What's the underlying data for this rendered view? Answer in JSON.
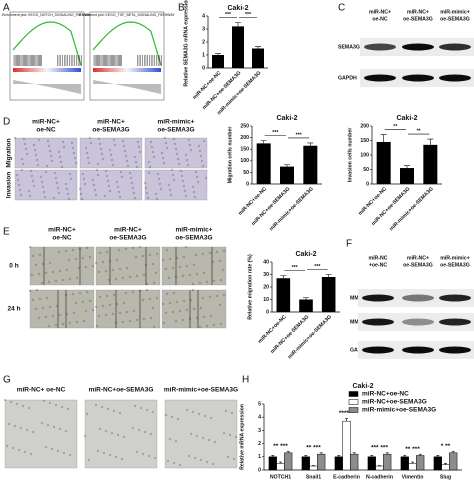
{
  "panel_letters": [
    "A",
    "B",
    "C",
    "D",
    "E",
    "F",
    "G",
    "H"
  ],
  "gsea_titles": [
    "Enrichment plot: KEGG_NOTCH_SIGNALING_PATHWAY",
    "Enrichment plot: KEGG_TGF_BETA_SIGNALING_PATHWAY"
  ],
  "blot_c": {
    "columns": [
      [
        "miR-NC+",
        "oe-NC"
      ],
      [
        "miR-NC+",
        "oe-SEMA3G"
      ],
      [
        "miR-mimic+",
        "oe-SEMA3G"
      ]
    ],
    "rows": [
      "SEMA3G",
      "GAPDH"
    ]
  },
  "panel_d": {
    "columns": [
      [
        "miR-NC+",
        "oe-NC"
      ],
      [
        "miR-NC+",
        "oe-SEMA3G"
      ],
      [
        "miR-mimic+",
        "oe-SEMA3G"
      ]
    ],
    "rows": [
      "Migration",
      "Invasion"
    ]
  },
  "panel_e": {
    "columns": [
      [
        "miR-NC+",
        "oe-NC"
      ],
      [
        "miR-NC+",
        "oe-SEMA3G"
      ],
      [
        "miR-mimic+",
        "oe-SEMA3G"
      ]
    ],
    "rows": [
      "0 h",
      "24 h"
    ]
  },
  "blot_f": {
    "columns": [
      [
        "miR-NC",
        "+oe-NC"
      ],
      [
        "miR-NC+",
        "oe-SEMA3G"
      ],
      [
        "miR-mimic+",
        "oe-SEMA3G"
      ]
    ],
    "rows": [
      "MMP2",
      "MMP9",
      "GAPDH"
    ]
  },
  "panel_g": {
    "columns": [
      "miR-NC+ oe-NC",
      "miR-NC+oe-SEMA3G",
      "miR-mimic+oe-SEMA3G"
    ]
  },
  "chart_data": [
    {
      "type": "bar",
      "title": "Caki-2",
      "ylabel": "Relative SEMA3G mRNA expression",
      "categories": [
        "miR-NC+oe-NC",
        "miR-NC+oe-SEMA3G",
        "miR-mimic+oe-SEMA3G"
      ],
      "values": [
        1.0,
        3.2,
        1.5
      ],
      "errors": [
        0.1,
        0.3,
        0.15
      ],
      "color": "#000000",
      "ylim": [
        0,
        4
      ],
      "yticks": [
        0,
        1,
        2,
        3,
        4
      ],
      "annotations": [
        "***",
        "***"
      ]
    },
    {
      "type": "bar",
      "title": "Caki-2",
      "ylabel": "Migration cells number",
      "categories": [
        "miR-NC+oe-NC",
        "miR-NC+oe-SEMA3G",
        "miR-mimic+oe-SEMA3G"
      ],
      "values": [
        175,
        75,
        165
      ],
      "errors": [
        12,
        8,
        12
      ],
      "color": "#000000",
      "ylim": [
        0,
        250
      ],
      "yticks": [
        0,
        50,
        100,
        150,
        200,
        250
      ],
      "annotations": [
        "***",
        "***"
      ]
    },
    {
      "type": "bar",
      "title": "Caki-2",
      "ylabel": "Invasion cells number",
      "categories": [
        "miR-NC+oe-NC",
        "miR-NC+oe-SEMA3G",
        "miR-mimic+oe-SEMA3G"
      ],
      "values": [
        145,
        55,
        135
      ],
      "errors": [
        25,
        8,
        20
      ],
      "color": "#000000",
      "ylim": [
        0,
        200
      ],
      "yticks": [
        0,
        50,
        100,
        150,
        200
      ],
      "annotations": [
        "**",
        "**"
      ]
    },
    {
      "type": "bar",
      "title": "Caki-2",
      "ylabel": "Relative migration rate (%)",
      "categories": [
        "miR-NC+oe-NC",
        "miR-NC+oe-SEMA3G",
        "miR-mimic+oe-SEMA3G"
      ],
      "values": [
        27,
        10,
        28
      ],
      "errors": [
        2,
        1.5,
        2
      ],
      "color": "#000000",
      "ylim": [
        0,
        40
      ],
      "yticks": [
        0,
        10,
        20,
        30,
        40
      ],
      "annotations": [
        "***",
        "***"
      ]
    },
    {
      "type": "grouped_bar",
      "title": "Caki-2",
      "ylabel": "Relative mRNA expression",
      "categories": [
        "NOTCH1",
        "Snail1",
        "E-cadherin",
        "N-cadherin",
        "Vimentin",
        "Slug"
      ],
      "series": [
        {
          "name": "miR-NC+oe-NC",
          "color": "#000000",
          "values": [
            1.0,
            1.0,
            1.0,
            1.0,
            1.0,
            1.0
          ],
          "errors": [
            0.1,
            0.1,
            0.1,
            0.1,
            0.1,
            0.1
          ]
        },
        {
          "name": "miR-NC+oe-SEMA3G",
          "color": "#ffffff",
          "values": [
            0.5,
            0.3,
            3.7,
            0.3,
            0.5,
            0.4
          ],
          "errors": [
            0.1,
            0.05,
            0.2,
            0.05,
            0.1,
            0.1
          ]
        },
        {
          "name": "miR-mimic+oe-SEMA3G",
          "color": "#8c8c8c",
          "values": [
            1.3,
            1.2,
            1.2,
            1.2,
            1.1,
            1.3
          ],
          "errors": [
            0.1,
            0.1,
            0.1,
            0.1,
            0.1,
            0.1
          ]
        }
      ],
      "ylim": [
        0,
        5
      ],
      "yticks": [
        0,
        1,
        2,
        3,
        4,
        5
      ],
      "legend": "top",
      "annotations": [
        "** ***",
        "** ***",
        "******",
        "*** ***",
        "** ***",
        "* **"
      ]
    }
  ]
}
